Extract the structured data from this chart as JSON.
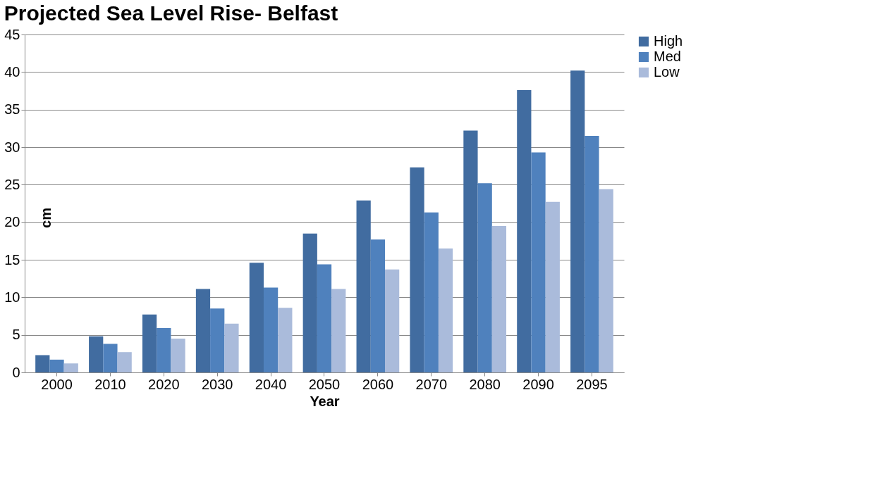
{
  "chart_data": {
    "type": "bar",
    "title": "Projected Sea Level Rise- Belfast",
    "xlabel": "Year",
    "ylabel": "cm",
    "categories": [
      "2000",
      "2010",
      "2020",
      "2030",
      "2040",
      "2050",
      "2060",
      "2070",
      "2080",
      "2090",
      "2095"
    ],
    "series": [
      {
        "name": "High",
        "color": "#416ca0",
        "values": [
          2.3,
          4.8,
          7.7,
          11.1,
          14.6,
          18.5,
          22.9,
          27.3,
          32.2,
          37.6,
          40.2
        ]
      },
      {
        "name": "Med",
        "color": "#4f81bd",
        "values": [
          1.7,
          3.8,
          5.9,
          8.5,
          11.3,
          14.4,
          17.7,
          21.3,
          25.2,
          29.3,
          31.5
        ]
      },
      {
        "name": "Low",
        "color": "#aabbdb",
        "values": [
          1.2,
          2.7,
          4.5,
          6.5,
          8.6,
          11.1,
          13.7,
          16.5,
          19.5,
          22.7,
          24.4
        ]
      }
    ],
    "ylim": [
      0,
      45
    ],
    "yticks": [
      0,
      5,
      10,
      15,
      20,
      25,
      30,
      35,
      40,
      45
    ],
    "grid": "y",
    "legend": "right"
  }
}
